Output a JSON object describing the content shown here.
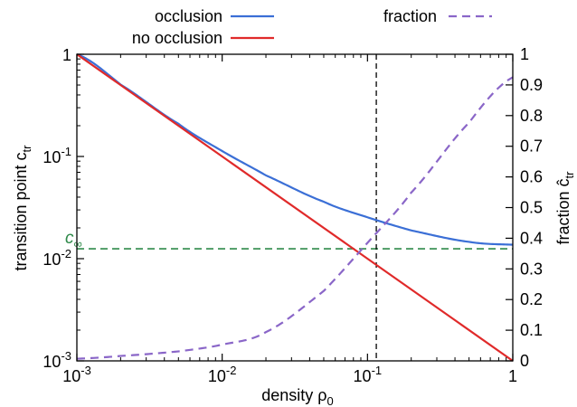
{
  "chart_data": {
    "type": "line",
    "x_scale": "log",
    "xlim": [
      0.001,
      1
    ],
    "y_left_scale": "log",
    "y_left_lim": [
      0.001,
      1
    ],
    "y_right_scale": "linear",
    "y_right_lim": [
      0,
      1
    ],
    "grid": false,
    "legend_placement": "top",
    "xlabel": {
      "text": "density ρ",
      "sub": "0"
    },
    "ylabel_left": {
      "text": "transition point c",
      "sub": "tr"
    },
    "ylabel_right": {
      "text": "fraction  ĉ",
      "sub": "tr"
    },
    "x_ticks": [
      {
        "value": 0.001,
        "base": "10",
        "exp": "-3"
      },
      {
        "value": 0.01,
        "base": "10",
        "exp": "-2"
      },
      {
        "value": 0.1,
        "base": "10",
        "exp": "-1"
      },
      {
        "value": 1,
        "base": "1",
        "exp": ""
      }
    ],
    "y_left_ticks": [
      {
        "value": 0.001,
        "base": "10",
        "exp": "-3"
      },
      {
        "value": 0.01,
        "base": "10",
        "exp": "-2"
      },
      {
        "value": 0.1,
        "base": "10",
        "exp": "-1"
      },
      {
        "value": 1,
        "base": "1",
        "exp": ""
      }
    ],
    "y_right_ticks": [
      {
        "value": 0,
        "label": "0"
      },
      {
        "value": 0.1,
        "label": "0.1"
      },
      {
        "value": 0.2,
        "label": "0.2"
      },
      {
        "value": 0.3,
        "label": "0.3"
      },
      {
        "value": 0.4,
        "label": "0.4"
      },
      {
        "value": 0.5,
        "label": "0.5"
      },
      {
        "value": 0.6,
        "label": "0.6"
      },
      {
        "value": 0.7,
        "label": "0.7"
      },
      {
        "value": 0.8,
        "label": "0.8"
      },
      {
        "value": 0.9,
        "label": "0.9"
      },
      {
        "value": 1,
        "label": "1"
      }
    ],
    "series": [
      {
        "name": "occlusion",
        "axis": "left",
        "color": "#3b6fd6",
        "dash": "solid",
        "x": [
          0.001,
          0.002,
          0.005,
          0.01,
          0.02,
          0.05,
          0.1,
          0.2,
          0.5,
          1
        ],
        "y": [
          1.0,
          0.505,
          0.209,
          0.113,
          0.0653,
          0.0361,
          0.0254,
          0.0189,
          0.0146,
          0.0137
        ]
      },
      {
        "name": "no occlusion",
        "axis": "left",
        "color": "#e02a2a",
        "dash": "solid",
        "x": [
          0.001,
          1
        ],
        "y": [
          1.0,
          0.001
        ]
      },
      {
        "name": "fraction",
        "axis": "right",
        "color": "#8a66c8",
        "dash": "dashed",
        "x": [
          0.001,
          0.002,
          0.005,
          0.01,
          0.02,
          0.05,
          0.1,
          0.2,
          0.5,
          1
        ],
        "y": [
          0.007,
          0.016,
          0.031,
          0.053,
          0.094,
          0.228,
          0.385,
          0.549,
          0.777,
          0.925
        ]
      }
    ],
    "reference_lines": [
      {
        "orientation": "horizontal",
        "axis": "left",
        "value": 0.0125,
        "color": "#2f8a4a",
        "dash": "dashed",
        "label": "c",
        "label_sub": "∞"
      },
      {
        "orientation": "vertical",
        "value": 0.115,
        "color": "#000000",
        "dash": "dashed"
      }
    ]
  }
}
